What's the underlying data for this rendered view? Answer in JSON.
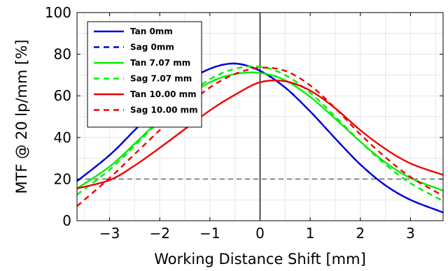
{
  "chart_data": {
    "type": "line",
    "title": "",
    "xlabel": "Working Distance Shift [mm]",
    "ylabel": "MTF @ 20 lp/mm [%]",
    "xlim": [
      -3.65,
      3.65
    ],
    "ylim": [
      0,
      100
    ],
    "xticks": [
      -3,
      -2,
      -1,
      0,
      1,
      2,
      3
    ],
    "xtick_labels": [
      "−3",
      "−2",
      "−1",
      "0",
      "1",
      "2",
      "3"
    ],
    "yticks": [
      0,
      20,
      40,
      60,
      80,
      100
    ],
    "ytick_labels": [
      "0",
      "20",
      "40",
      "60",
      "80",
      "100"
    ],
    "grid": true,
    "legend_position": "top-left",
    "reference_lines": [
      {
        "orientation": "horizontal",
        "value": 20,
        "style": "dashed",
        "color": "#555555"
      },
      {
        "orientation": "vertical",
        "value": 0,
        "style": "solid",
        "color": "#000000"
      }
    ],
    "series": [
      {
        "name": "Tan 0mm",
        "color": "#0000dd",
        "style": "solid",
        "x": [
          -3.65,
          -3.0,
          -2.5,
          -2.0,
          -1.5,
          -1.0,
          -0.5,
          0.0,
          0.5,
          1.0,
          1.5,
          2.0,
          2.5,
          3.0,
          3.65
        ],
        "y": [
          19,
          31.5,
          43.5,
          55.5,
          66,
          73,
          75.5,
          72,
          64,
          52.5,
          39.5,
          27,
          17,
          10,
          4
        ]
      },
      {
        "name": "Sag 0mm",
        "color": "#0000dd",
        "style": "dashed",
        "x": [
          -3.65,
          -3.0,
          -2.5,
          -2.0,
          -1.5,
          -1.0,
          -0.5,
          0.0,
          0.5,
          1.0,
          1.5,
          2.0,
          2.5,
          3.0,
          3.65
        ],
        "y": [
          19,
          31.5,
          43.5,
          55.5,
          66,
          73,
          75.5,
          72,
          64,
          52.5,
          39.5,
          27,
          17,
          10,
          4
        ]
      },
      {
        "name": "Tan 7.07 mm",
        "color": "#00ee00",
        "style": "solid",
        "x": [
          -3.65,
          -3.0,
          -2.5,
          -2.0,
          -1.5,
          -1.0,
          -0.5,
          0.0,
          0.5,
          1.0,
          1.5,
          2.0,
          2.5,
          3.0,
          3.65
        ],
        "y": [
          15.5,
          26,
          37,
          48.5,
          58.5,
          66.5,
          70.5,
          71,
          67.5,
          59.5,
          49,
          38,
          28,
          20.5,
          14.5
        ]
      },
      {
        "name": "Sag 7.07 mm",
        "color": "#00ee00",
        "style": "dashed",
        "x": [
          -3.65,
          -3.0,
          -2.5,
          -2.0,
          -1.5,
          -1.0,
          -0.5,
          0.0,
          0.5,
          1.0,
          1.5,
          2.0,
          2.5,
          3.0,
          3.65
        ],
        "y": [
          12.5,
          24.5,
          36,
          48,
          59,
          68,
          73,
          74,
          70,
          61.5,
          50,
          38,
          27,
          18,
          9.5
        ]
      },
      {
        "name": "Tan 10.00 mm",
        "color": "#ee0000",
        "style": "solid",
        "x": [
          -3.65,
          -3.0,
          -2.5,
          -2.0,
          -1.5,
          -1.0,
          -0.5,
          0.0,
          0.5,
          1.0,
          1.5,
          2.0,
          2.5,
          3.0,
          3.65
        ],
        "y": [
          15.5,
          19.5,
          26.5,
          35,
          44,
          53,
          60.5,
          66.5,
          67,
          62.5,
          54,
          43.5,
          34.5,
          27.5,
          22
        ]
      },
      {
        "name": "Sag 10.00 mm",
        "color": "#ee0000",
        "style": "dashed",
        "x": [
          -3.65,
          -3.0,
          -2.5,
          -2.0,
          -1.5,
          -1.0,
          -0.5,
          0.0,
          0.5,
          1.0,
          1.5,
          2.0,
          2.5,
          3.0,
          3.65
        ],
        "y": [
          7,
          20.5,
          32,
          43.5,
          54.5,
          64,
          70.5,
          73.5,
          72,
          65,
          54,
          41.5,
          30.5,
          21,
          12
        ]
      }
    ]
  }
}
